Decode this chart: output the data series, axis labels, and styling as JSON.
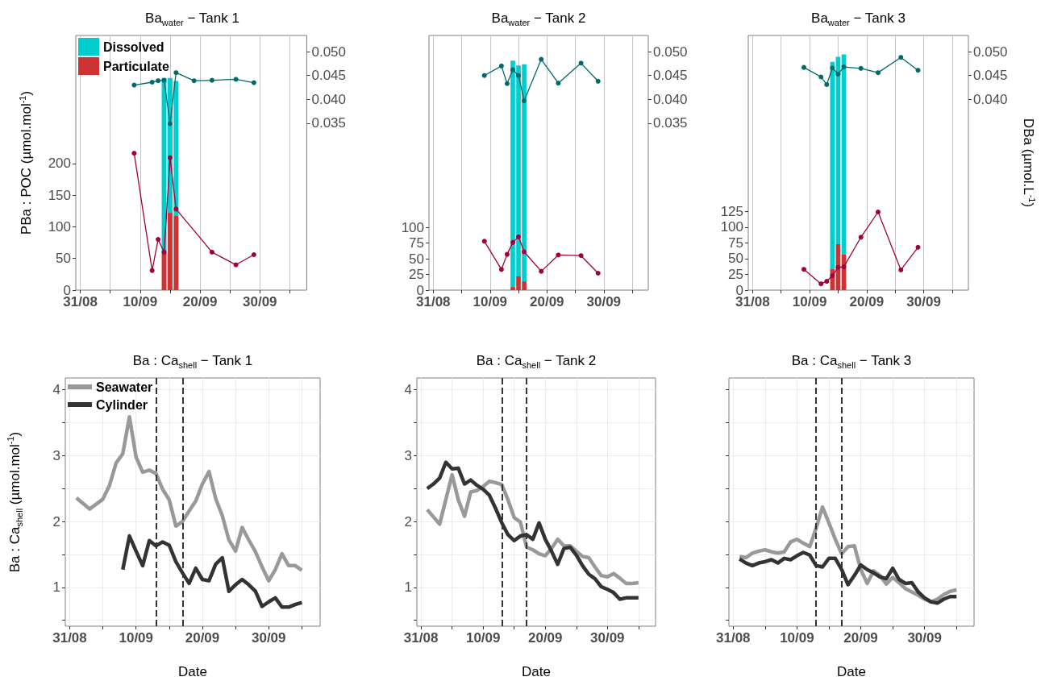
{
  "chart_data": [
    {
      "type": "bar",
      "title": "Ba$_{water}$ − Tank 1",
      "ylabel": "PBa : POC (µmol.mol$^{-1}$)",
      "stacked": true,
      "grid": "x",
      "legend": "top left",
      "marker": "circle",
      "xlim": [
        "--08-30T06:00",
        "--10-07T20:00"
      ],
      "xticks": [
        {
          "value": "--08-31",
          "label": "31/08"
        },
        {
          "value": "--09-05",
          "label": null
        },
        {
          "value": "--09-10",
          "label": "10/09"
        },
        {
          "value": "--09-15",
          "label": null
        },
        {
          "value": "--09-20",
          "label": "20/09"
        },
        {
          "value": "--09-25",
          "label": null
        },
        {
          "value": "--09-30",
          "label": "30/09"
        },
        {
          "value": "--10-05",
          "label": null
        }
      ],
      "ylim": [
        0,
        402
      ],
      "yticks": [
        0,
        50,
        100,
        150,
        200
      ],
      "y2lim": [
        0,
        0.0534
      ],
      "y2ticks": [
        {
          "value": 0.035,
          "label": "0.035"
        },
        {
          "value": 0.04,
          "label": "0.040"
        },
        {
          "value": 0.045,
          "label": "0.045"
        },
        {
          "value": 0.05,
          "label": "0.050"
        }
      ],
      "series": [
        {
          "name": "Particulate",
          "color": "#cd3333",
          "x": [
            "--09-14",
            "--09-15",
            "--09-16"
          ],
          "values": [
            60,
            122,
            117
          ]
        },
        {
          "name": "Dissolved",
          "color": "#00cdcd",
          "x": [
            "--09-14",
            "--09-15",
            "--09-16"
          ],
          "values": [
            275,
            213,
            213
          ]
        },
        {
          "type": "line",
          "color": "#a1003c",
          "x": [
            "--09-09",
            "--09-12",
            "--09-13",
            "--09-14",
            "--09-15",
            "--09-16",
            "--09-22",
            "--09-26",
            "--09-29"
          ],
          "values": [
            216,
            31,
            80,
            60,
            209,
            128,
            60,
            40,
            56
          ]
        },
        {
          "type": "line",
          "axis": "y2",
          "color": "#00696b",
          "x": [
            "--09-09",
            "--09-12",
            "--09-13",
            "--09-14",
            "--09-15",
            "--09-16",
            "--09-19",
            "--09-22",
            "--09-26",
            "--09-29"
          ],
          "values": [
            0.043,
            0.0436,
            0.0439,
            0.044,
            0.0349,
            0.0456,
            0.0439,
            0.044,
            0.0442,
            0.0435
          ]
        }
      ]
    },
    {
      "type": "bar",
      "title": "Ba$_{water}$ − Tank 2",
      "stacked": true,
      "grid": "x",
      "marker": "circle",
      "xlim": [
        "--08-30T06:00",
        "--10-07T20:00"
      ],
      "xticks": [
        {
          "value": "--08-31",
          "label": "31/08"
        },
        {
          "value": "--09-05",
          "label": null
        },
        {
          "value": "--09-10",
          "label": "10/09"
        },
        {
          "value": "--09-15",
          "label": null
        },
        {
          "value": "--09-20",
          "label": "20/09"
        },
        {
          "value": "--09-25",
          "label": null
        },
        {
          "value": "--09-30",
          "label": "30/09"
        },
        {
          "value": "--10-05",
          "label": null
        }
      ],
      "ylim": [
        0,
        406
      ],
      "yticks": [
        0,
        25,
        50,
        75,
        100
      ],
      "y2lim": [
        0,
        0.0534
      ],
      "y2ticks": [
        {
          "value": 0.035,
          "label": "0.035"
        },
        {
          "value": 0.04,
          "label": "0.040"
        },
        {
          "value": 0.045,
          "label": "0.045"
        },
        {
          "value": 0.05,
          "label": "0.050"
        }
      ],
      "series": [
        {
          "color": "#cd3333",
          "x": [
            "--09-14",
            "--09-15",
            "--09-16"
          ],
          "values": [
            5,
            22,
            14
          ]
        },
        {
          "color": "#00cdcd",
          "x": [
            "--09-14",
            "--09-15",
            "--09-16"
          ],
          "values": [
            361,
            336,
            346
          ]
        },
        {
          "type": "line",
          "color": "#a1003c",
          "x": [
            "--09-09",
            "--09-12",
            "--09-13",
            "--09-14",
            "--09-15",
            "--09-16",
            "--09-19",
            "--09-22",
            "--09-26",
            "--09-29"
          ],
          "values": [
            78,
            33,
            57,
            76,
            85,
            61,
            30,
            56,
            55,
            27
          ]
        },
        {
          "type": "line",
          "axis": "y2",
          "color": "#00696b",
          "x": [
            "--09-09",
            "--09-12",
            "--09-13",
            "--09-14",
            "--09-15",
            "--09-16",
            "--09-19",
            "--09-22",
            "--09-26",
            "--09-29"
          ],
          "values": [
            0.045,
            0.047,
            0.0433,
            0.0462,
            0.045,
            0.0397,
            0.0484,
            0.0434,
            0.0476,
            0.0438
          ]
        }
      ]
    },
    {
      "type": "bar",
      "title": "Ba$_{water}$ − Tank 3",
      "y2label": "DBa (µmol.L$^{-1}$)",
      "stacked": true,
      "grid": "x",
      "marker": "circle",
      "xlim": [
        "--08-30T06:00",
        "--10-07T20:00"
      ],
      "xticks": [
        {
          "value": "--08-31",
          "label": "31/08"
        },
        {
          "value": "--09-05",
          "label": null
        },
        {
          "value": "--09-10",
          "label": "10/09"
        },
        {
          "value": "--09-15",
          "label": null
        },
        {
          "value": "--09-20",
          "label": "20/09"
        },
        {
          "value": "--09-25",
          "label": null
        },
        {
          "value": "--09-30",
          "label": "30/09"
        },
        {
          "value": "--10-05",
          "label": null
        }
      ],
      "ylim": [
        0,
        404
      ],
      "yticks": [
        0,
        25,
        50,
        75,
        100,
        125
      ],
      "y2lim": [
        0,
        0.0534
      ],
      "y2ticks": [
        {
          "value": 0.04,
          "label": "0.040"
        },
        {
          "value": 0.045,
          "label": "0.045"
        },
        {
          "value": 0.05,
          "label": "0.050"
        }
      ],
      "series": [
        {
          "color": "#cd3333",
          "x": [
            "--09-14",
            "--09-15",
            "--09-16"
          ],
          "values": [
            34,
            73,
            57
          ]
        },
        {
          "color": "#00cdcd",
          "x": [
            "--09-14",
            "--09-15",
            "--09-16"
          ],
          "values": [
            328,
            297,
            317
          ]
        },
        {
          "type": "line",
          "color": "#a1003c",
          "x": [
            "--09-09",
            "--09-12",
            "--09-13",
            "--09-14",
            "--09-15",
            "--09-16",
            "--09-19",
            "--09-22",
            "--09-26",
            "--09-29"
          ],
          "values": [
            33,
            10,
            14,
            23,
            36,
            37,
            84,
            124,
            32,
            68
          ]
        },
        {
          "type": "line",
          "axis": "y2",
          "color": "#00696b",
          "x": [
            "--09-09",
            "--09-12",
            "--09-13",
            "--09-14",
            "--09-15",
            "--09-16",
            "--09-19",
            "--09-22",
            "--09-26",
            "--09-29"
          ],
          "values": [
            0.0467,
            0.0447,
            0.0431,
            0.0466,
            0.0453,
            0.0468,
            0.0465,
            0.0456,
            0.0488,
            0.0461
          ]
        }
      ]
    },
    {
      "type": "line",
      "title": "Ba : Ca$_{shell}$ − Tank 1",
      "ylabel": "Ba : Ca$_{shell}$ (µmol.mol$^{-1}$)",
      "xlabel": "Date",
      "grid": true,
      "legend": "top left",
      "xlim": [
        "--08-30T08:00",
        "--10-07T18:00"
      ],
      "xticks": [
        {
          "value": "--08-31",
          "label": "31/08"
        },
        {
          "value": "--09-05",
          "label": null
        },
        {
          "value": "--09-10",
          "label": "10/09"
        },
        {
          "value": "--09-15",
          "label": null
        },
        {
          "value": "--09-20",
          "label": "20/09"
        },
        {
          "value": "--09-25",
          "label": null
        },
        {
          "value": "--09-30",
          "label": "30/09"
        },
        {
          "value": "--10-05",
          "label": null
        }
      ],
      "ylim": [
        0.41,
        4.18
      ],
      "yticks": [
        {
          "value": 0.5,
          "label": null
        },
        1,
        {
          "value": 1.5,
          "label": null
        },
        2,
        {
          "value": 2.5,
          "label": null
        },
        3,
        {
          "value": 3.5,
          "label": null
        },
        4
      ],
      "ref_lines": [
        {
          "axis": "x",
          "value": "--09-13",
          "color": "#333333",
          "line_style": "dashed"
        },
        {
          "axis": "x",
          "value": "--09-17",
          "color": "#333333",
          "line_style": "dashed"
        }
      ],
      "series": [
        {
          "name": "Seawater",
          "color": "#999999",
          "x": [
            "--09-01",
            "--09-03",
            "--09-05",
            "--09-06",
            "--09-07",
            "--09-08",
            "--09-09",
            "--09-10",
            "--09-11",
            "--09-12",
            "--09-13",
            "--09-14",
            "--09-15",
            "--09-16",
            "--09-17",
            "--09-18",
            "--09-19",
            "--09-20",
            "--09-21",
            "--09-22",
            "--09-23",
            "--09-24",
            "--09-25",
            "--09-26",
            "--09-27",
            "--09-28",
            "--09-29",
            "--09-30",
            "--10-01",
            "--10-02",
            "--10-03",
            "--10-04",
            "--10-05"
          ],
          "values": [
            2.36,
            2.19,
            2.34,
            2.55,
            2.89,
            3.03,
            3.59,
            2.98,
            2.75,
            2.78,
            2.73,
            2.49,
            2.33,
            1.93,
            2.0,
            2.16,
            2.31,
            2.57,
            2.76,
            2.35,
            2.09,
            1.72,
            1.55,
            1.91,
            1.72,
            1.54,
            1.31,
            1.1,
            1.27,
            1.51,
            1.33,
            1.33,
            1.26
          ]
        },
        {
          "name": "Cylinder",
          "color": "#333333",
          "x": [
            "--09-08",
            "--09-09",
            "--09-10",
            "--09-11",
            "--09-12",
            "--09-13",
            "--09-14",
            "--09-15",
            "--09-16",
            "--09-17",
            "--09-18",
            "--09-19",
            "--09-20",
            "--09-21",
            "--09-22",
            "--09-23",
            "--09-24",
            "--09-25",
            "--09-26",
            "--09-27",
            "--09-28",
            "--09-29",
            "--09-30",
            "--10-01",
            "--10-02",
            "--10-03",
            "--10-04",
            "--10-05"
          ],
          "values": [
            1.27,
            1.78,
            1.55,
            1.33,
            1.71,
            1.63,
            1.69,
            1.64,
            1.39,
            1.22,
            1.06,
            1.29,
            1.12,
            1.1,
            1.35,
            1.45,
            0.94,
            1.04,
            1.12,
            1.04,
            0.94,
            0.71,
            0.78,
            0.84,
            0.7,
            0.7,
            0.74,
            0.77
          ]
        }
      ]
    },
    {
      "type": "line",
      "title": "Ba : Ca$_{shell}$ − Tank 2",
      "xlabel": "Date",
      "grid": true,
      "xlim": [
        "--08-30T08:00",
        "--10-07T18:00"
      ],
      "xticks": [
        {
          "value": "--08-31",
          "label": "31/08"
        },
        {
          "value": "--09-05",
          "label": null
        },
        {
          "value": "--09-10",
          "label": "10/09"
        },
        {
          "value": "--09-15",
          "label": null
        },
        {
          "value": "--09-20",
          "label": "20/09"
        },
        {
          "value": "--09-25",
          "label": null
        },
        {
          "value": "--09-30",
          "label": "30/09"
        },
        {
          "value": "--10-05",
          "label": null
        }
      ],
      "ylim": [
        0.41,
        4.18
      ],
      "yticks": [
        {
          "value": 0.5,
          "label": null
        },
        1,
        {
          "value": 1.5,
          "label": null
        },
        2,
        {
          "value": 2.5,
          "label": null
        },
        3,
        {
          "value": 3.5,
          "label": null
        },
        4
      ],
      "ref_lines": [
        {
          "axis": "x",
          "value": "--09-13",
          "color": "#333333",
          "line_style": "dashed"
        },
        {
          "axis": "x",
          "value": "--09-17",
          "color": "#333333",
          "line_style": "dashed"
        }
      ],
      "x": [
        "--09-01",
        "--09-02",
        "--09-03",
        "--09-04",
        "--09-05",
        "--09-06",
        "--09-07",
        "--09-08",
        "--09-09",
        "--09-10",
        "--09-11",
        "--09-12",
        "--09-13",
        "--09-14",
        "--09-15",
        "--09-16",
        "--09-17",
        "--09-18",
        "--09-19",
        "--09-20",
        "--09-21",
        "--09-22",
        "--09-23",
        "--09-24",
        "--09-25",
        "--09-26",
        "--09-27",
        "--09-28",
        "--09-29",
        "--09-30",
        "--10-01",
        "--10-02",
        "--10-03",
        "--10-04",
        "--10-05"
      ],
      "series": [
        {
          "color": "#999999",
          "x": [
            "--09-01",
            "--09-03",
            "--09-05",
            "--09-06",
            "--09-07",
            "--09-08",
            "--09-09",
            "--09-10",
            "--09-11",
            "--09-12",
            "--09-13",
            "--09-14",
            "--09-15",
            "--09-16",
            "--09-17",
            "--09-18",
            "--09-19",
            "--09-20",
            "--09-21",
            "--09-22",
            "--09-23",
            "--09-24",
            "--09-25",
            "--09-26",
            "--09-27",
            "--09-28",
            "--09-29",
            "--09-30",
            "--10-01",
            "--10-02",
            "--10-03",
            "--10-04",
            "--10-05"
          ],
          "values": [
            2.18,
            1.96,
            2.71,
            2.33,
            2.08,
            2.45,
            2.47,
            2.53,
            2.61,
            2.59,
            2.56,
            2.33,
            2.06,
            1.99,
            1.61,
            1.57,
            1.51,
            1.48,
            1.59,
            1.73,
            1.63,
            1.63,
            1.55,
            1.47,
            1.45,
            1.31,
            1.18,
            1.16,
            1.21,
            1.14,
            1.06,
            1.06,
            1.07
          ]
        },
        {
          "color": "#333333",
          "values": [
            2.5,
            2.57,
            2.66,
            2.9,
            2.8,
            2.81,
            2.57,
            2.63,
            2.55,
            2.49,
            2.4,
            2.2,
            1.98,
            1.8,
            1.71,
            1.78,
            1.8,
            1.73,
            1.98,
            1.73,
            1.55,
            1.35,
            1.59,
            1.61,
            1.49,
            1.33,
            1.2,
            1.13,
            1.01,
            0.97,
            0.92,
            0.82,
            0.84,
            0.84,
            0.84
          ]
        }
      ]
    },
    {
      "type": "line",
      "title": "Ba : Ca$_{shell}$ − Tank 3",
      "xlabel": "Date",
      "grid": true,
      "tick_labels": "x",
      "xlim": [
        "--08-30T08:00",
        "--10-07T18:00"
      ],
      "xticks": [
        {
          "value": "--08-31",
          "label": "31/08"
        },
        {
          "value": "--09-05",
          "label": null
        },
        {
          "value": "--09-10",
          "label": "10/09"
        },
        {
          "value": "--09-15",
          "label": null
        },
        {
          "value": "--09-20",
          "label": "20/09"
        },
        {
          "value": "--09-25",
          "label": null
        },
        {
          "value": "--09-30",
          "label": "30/09"
        },
        {
          "value": "--10-05",
          "label": null
        }
      ],
      "ylim": [
        0.41,
        4.18
      ],
      "yticks": [
        {
          "value": 0.5,
          "label": null
        },
        1,
        {
          "value": 1.5,
          "label": null
        },
        2,
        {
          "value": 2.5,
          "label": null
        },
        3,
        {
          "value": 3.5,
          "label": null
        },
        4
      ],
      "ref_lines": [
        {
          "axis": "x",
          "value": "--09-13",
          "color": "#333333",
          "line_style": "dashed"
        },
        {
          "axis": "x",
          "value": "--09-17",
          "color": "#333333",
          "line_style": "dashed"
        }
      ],
      "x": [
        "--09-01",
        "--09-02",
        "--09-03",
        "--09-04",
        "--09-05",
        "--09-06",
        "--09-07",
        "--09-08",
        "--09-09",
        "--09-10",
        "--09-11",
        "--09-12",
        "--09-13",
        "--09-14",
        "--09-15",
        "--09-16",
        "--09-17",
        "--09-18",
        "--09-19",
        "--09-20",
        "--09-21",
        "--09-22",
        "--09-23",
        "--09-24",
        "--09-25",
        "--09-26",
        "--09-27",
        "--09-28",
        "--09-29",
        "--09-30",
        "--10-01",
        "--10-02",
        "--10-03",
        "--10-04",
        "--10-05"
      ],
      "series": [
        {
          "color": "#999999",
          "values": [
            1.47,
            1.45,
            1.52,
            1.55,
            1.57,
            1.54,
            1.52,
            1.54,
            1.69,
            1.73,
            1.67,
            1.62,
            1.9,
            2.22,
            1.98,
            1.73,
            1.51,
            1.62,
            1.63,
            1.27,
            1.06,
            1.25,
            1.18,
            1.05,
            1.15,
            1.07,
            0.98,
            0.93,
            0.88,
            0.82,
            0.78,
            0.82,
            0.89,
            0.94,
            0.96
          ]
        },
        {
          "color": "#333333",
          "values": [
            1.43,
            1.37,
            1.33,
            1.37,
            1.39,
            1.42,
            1.37,
            1.44,
            1.42,
            1.48,
            1.53,
            1.49,
            1.33,
            1.31,
            1.44,
            1.44,
            1.27,
            1.04,
            1.18,
            1.34,
            1.27,
            1.22,
            1.16,
            1.13,
            1.29,
            1.12,
            1.06,
            1.07,
            0.93,
            0.84,
            0.78,
            0.76,
            0.82,
            0.86,
            0.86
          ]
        }
      ]
    }
  ]
}
